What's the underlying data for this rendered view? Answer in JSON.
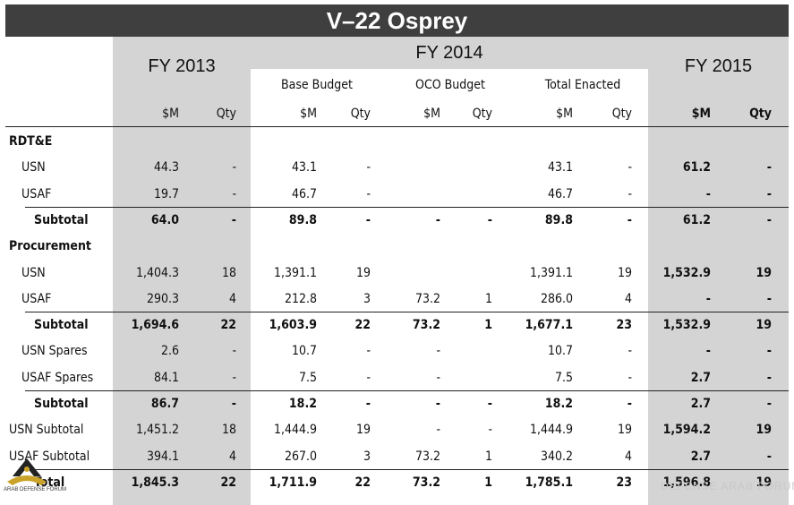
{
  "title": "V–22 Osprey",
  "headers": {
    "fy2013": "FY 2013",
    "fy2014": "FY 2014",
    "fy2015": "FY 2015",
    "base_budget": "Base Budget",
    "oco_budget": "OCO Budget",
    "total_enacted": "Total Enacted",
    "m": "$M",
    "qty": "Qty"
  },
  "rows": [
    {
      "label": "RDT&E",
      "type": "section",
      "vals": [
        "",
        "",
        "",
        "",
        "",
        "",
        "",
        "",
        "",
        ""
      ]
    },
    {
      "label": "USN",
      "type": "item",
      "vals": [
        "44.3",
        "-",
        "43.1",
        "-",
        "",
        "",
        "43.1",
        "-",
        "61.2",
        "-"
      ]
    },
    {
      "label": "USAF",
      "type": "item",
      "vals": [
        "19.7",
        "-",
        "46.7",
        "-",
        "",
        "",
        "46.7",
        "-",
        "-",
        "-"
      ]
    },
    {
      "label": "Subtotal",
      "type": "subtotal",
      "vals": [
        "64.0",
        "-",
        "89.8",
        "-",
        "-",
        "-",
        "89.8",
        "-",
        "61.2",
        "-"
      ]
    },
    {
      "label": "Procurement",
      "type": "section",
      "vals": [
        "",
        "",
        "",
        "",
        "",
        "",
        "",
        "",
        "",
        ""
      ]
    },
    {
      "label": "USN",
      "type": "item",
      "vals": [
        "1,404.3",
        "18",
        "1,391.1",
        "19",
        "",
        "",
        "1,391.1",
        "19",
        "1,532.9",
        "19"
      ]
    },
    {
      "label": "USAF",
      "type": "item",
      "vals": [
        "290.3",
        "4",
        "212.8",
        "3",
        "73.2",
        "1",
        "286.0",
        "4",
        "-",
        "-"
      ]
    },
    {
      "label": "Subtotal",
      "type": "subtotal",
      "vals": [
        "1,694.6",
        "22",
        "1,603.9",
        "22",
        "73.2",
        "1",
        "1,677.1",
        "23",
        "1,532.9",
        "19"
      ]
    },
    {
      "label": "USN Spares",
      "type": "item",
      "vals": [
        "2.6",
        "-",
        "10.7",
        "-",
        "-",
        "",
        "10.7",
        "-",
        "-",
        "-"
      ]
    },
    {
      "label": "USAF Spares",
      "type": "item",
      "vals": [
        "84.1",
        "-",
        "7.5",
        "-",
        "-",
        "",
        "7.5",
        "-",
        "2.7",
        "-"
      ]
    },
    {
      "label": "Subtotal",
      "type": "subtotal",
      "vals": [
        "86.7",
        "-",
        "18.2",
        "-",
        "-",
        "-",
        "18.2",
        "-",
        "2.7",
        "-"
      ]
    },
    {
      "label": "USN Subtotal",
      "type": "left",
      "vals": [
        "1,451.2",
        "18",
        "1,444.9",
        "19",
        "-",
        "-",
        "1,444.9",
        "19",
        "1,594.2",
        "19"
      ]
    },
    {
      "label": "USAF Subtotal",
      "type": "left",
      "vals": [
        "394.1",
        "4",
        "267.0",
        "3",
        "73.2",
        "1",
        "340.2",
        "4",
        "2.7",
        "-"
      ]
    },
    {
      "label": "Total",
      "type": "total",
      "vals": [
        "1,845.3",
        "22",
        "1,711.9",
        "22",
        "73.2",
        "1",
        "1,785.1",
        "23",
        "1,596.8",
        "19"
      ]
    }
  ],
  "logo": {
    "text": "ARAB DEFENSE FORUM"
  },
  "watermark": {
    "text": "DEFENSE ARAB FORUM"
  }
}
